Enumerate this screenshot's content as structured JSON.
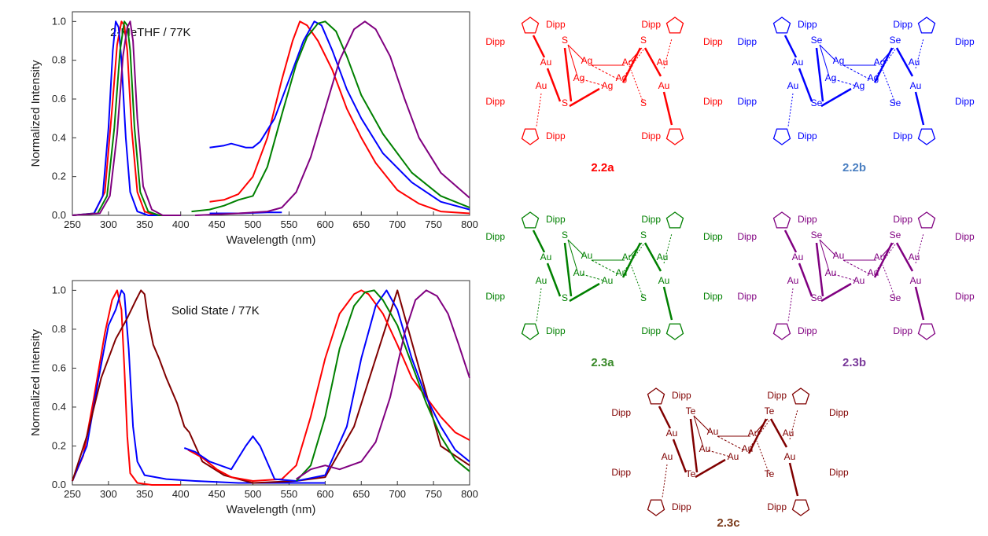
{
  "chart_data": [
    {
      "type": "line",
      "annotation": "2-MeTHF / 77K",
      "xlabel": "Wavelength (nm)",
      "ylabel": "Normalized Intensity",
      "xlim": [
        250,
        800
      ],
      "ylim": [
        0,
        1.05
      ],
      "xticks": [
        250,
        300,
        350,
        400,
        450,
        500,
        550,
        600,
        650,
        700,
        750,
        800
      ],
      "yticks": [
        0.0,
        0.2,
        0.4,
        0.6,
        0.8,
        1.0
      ],
      "legend": "none",
      "series": [
        {
          "color": "#ff0000",
          "kind": "excitation",
          "x": [
            250,
            280,
            295,
            305,
            312,
            318,
            322,
            326,
            332,
            340,
            350,
            365,
            400
          ],
          "y": [
            0.0,
            0.01,
            0.12,
            0.55,
            0.88,
            1.0,
            0.98,
            0.85,
            0.45,
            0.12,
            0.02,
            0.0,
            0.0
          ]
        },
        {
          "color": "#0000ff",
          "kind": "excitation",
          "x": [
            250,
            280,
            292,
            300,
            306,
            310,
            314,
            318,
            324,
            330,
            340,
            355,
            400
          ],
          "y": [
            0.0,
            0.01,
            0.1,
            0.45,
            0.85,
            1.0,
            0.97,
            0.8,
            0.4,
            0.12,
            0.02,
            0.0,
            0.0
          ]
        },
        {
          "color": "#008000",
          "kind": "excitation",
          "x": [
            250,
            285,
            298,
            308,
            316,
            322,
            326,
            330,
            336,
            344,
            355,
            370,
            400
          ],
          "y": [
            0.0,
            0.01,
            0.1,
            0.45,
            0.85,
            1.0,
            0.98,
            0.85,
            0.45,
            0.12,
            0.02,
            0.0,
            0.0
          ]
        },
        {
          "color": "#800080",
          "kind": "excitation",
          "x": [
            250,
            288,
            302,
            312,
            320,
            326,
            330,
            334,
            340,
            348,
            360,
            375,
            400
          ],
          "y": [
            0.0,
            0.01,
            0.1,
            0.42,
            0.82,
            0.97,
            1.0,
            0.9,
            0.5,
            0.15,
            0.03,
            0.0,
            0.0
          ]
        },
        {
          "color": "#ff0000",
          "kind": "emission",
          "x": [
            440,
            460,
            480,
            500,
            520,
            540,
            555,
            565,
            575,
            590,
            610,
            630,
            650,
            670,
            700,
            730,
            760,
            800
          ],
          "y": [
            0.07,
            0.08,
            0.11,
            0.2,
            0.4,
            0.7,
            0.9,
            1.0,
            0.98,
            0.9,
            0.75,
            0.55,
            0.4,
            0.27,
            0.13,
            0.06,
            0.02,
            0.01
          ]
        },
        {
          "color": "#0000ff",
          "kind": "emission",
          "x": [
            440,
            460,
            470,
            490,
            500,
            510,
            530,
            550,
            570,
            585,
            595,
            610,
            630,
            650,
            680,
            720,
            760,
            800
          ],
          "y": [
            0.35,
            0.36,
            0.37,
            0.35,
            0.35,
            0.38,
            0.5,
            0.7,
            0.9,
            1.0,
            0.98,
            0.85,
            0.65,
            0.5,
            0.32,
            0.17,
            0.07,
            0.03
          ]
        },
        {
          "color": "#008000",
          "kind": "emission",
          "x": [
            415,
            440,
            460,
            480,
            500,
            520,
            540,
            560,
            575,
            590,
            600,
            615,
            630,
            650,
            680,
            720,
            760,
            800
          ],
          "y": [
            0.02,
            0.03,
            0.05,
            0.08,
            0.1,
            0.25,
            0.52,
            0.78,
            0.92,
            0.99,
            1.0,
            0.95,
            0.82,
            0.62,
            0.42,
            0.22,
            0.1,
            0.04
          ]
        },
        {
          "color": "#0000ff",
          "kind": "emission-baseline",
          "x": [
            440,
            480,
            520,
            540
          ],
          "y": [
            0.01,
            0.01,
            0.015,
            0.015
          ]
        },
        {
          "color": "#800080",
          "kind": "emission",
          "x": [
            420,
            480,
            520,
            540,
            560,
            580,
            600,
            620,
            640,
            655,
            670,
            690,
            710,
            730,
            760,
            800
          ],
          "y": [
            0.0,
            0.01,
            0.02,
            0.04,
            0.12,
            0.3,
            0.55,
            0.8,
            0.96,
            1.0,
            0.96,
            0.82,
            0.6,
            0.4,
            0.22,
            0.09
          ]
        }
      ]
    },
    {
      "type": "line",
      "annotation": "Solid State / 77K",
      "xlabel": "Wavelength (nm)",
      "ylabel": "Normalized Intensity",
      "xlim": [
        250,
        800
      ],
      "ylim": [
        0,
        1.05
      ],
      "xticks": [
        250,
        300,
        350,
        400,
        450,
        500,
        550,
        600,
        650,
        700,
        750,
        800
      ],
      "yticks": [
        0.0,
        0.2,
        0.4,
        0.6,
        0.8,
        1.0
      ],
      "legend": "none",
      "series": [
        {
          "color": "#ff0000",
          "kind": "excitation",
          "x": [
            250,
            265,
            280,
            295,
            305,
            312,
            318,
            322,
            326,
            330,
            340,
            360,
            400
          ],
          "y": [
            0.02,
            0.15,
            0.45,
            0.78,
            0.95,
            1.0,
            0.9,
            0.6,
            0.25,
            0.06,
            0.01,
            0.0,
            0.0
          ]
        },
        {
          "color": "#0000ff",
          "kind": "excitation",
          "x": [
            250,
            270,
            285,
            300,
            310,
            318,
            322,
            328,
            334,
            340,
            350,
            380,
            420,
            480,
            550,
            600
          ],
          "y": [
            0.02,
            0.2,
            0.52,
            0.82,
            0.9,
            1.0,
            0.98,
            0.7,
            0.3,
            0.12,
            0.05,
            0.03,
            0.02,
            0.01,
            0.01,
            0.01
          ]
        },
        {
          "color": "#800000",
          "kind": "excitation",
          "x": [
            250,
            270,
            290,
            310,
            325,
            338,
            345,
            350,
            355,
            362,
            370,
            380,
            395,
            405,
            412,
            430,
            460,
            500,
            560,
            600,
            640,
            700,
            760,
            800
          ],
          "y": [
            0.02,
            0.25,
            0.55,
            0.75,
            0.85,
            0.95,
            1.0,
            0.98,
            0.85,
            0.72,
            0.65,
            0.55,
            0.42,
            0.3,
            0.27,
            0.12,
            0.05,
            0.01,
            0.02,
            0.04,
            0.3,
            1.0,
            0.2,
            0.1
          ]
        },
        {
          "color": "#ff0000",
          "kind": "emission",
          "x": [
            410,
            430,
            450,
            470,
            500,
            540,
            560,
            580,
            600,
            620,
            640,
            650,
            660,
            680,
            700,
            720,
            740,
            760,
            780,
            800
          ],
          "y": [
            0.18,
            0.14,
            0.08,
            0.04,
            0.02,
            0.03,
            0.1,
            0.35,
            0.65,
            0.88,
            0.98,
            1.0,
            0.98,
            0.88,
            0.72,
            0.55,
            0.45,
            0.35,
            0.27,
            0.23
          ]
        },
        {
          "color": "#0000ff",
          "kind": "emission",
          "x": [
            405,
            420,
            440,
            470,
            490,
            500,
            510,
            530,
            560,
            600,
            630,
            650,
            670,
            685,
            700,
            720,
            740,
            760,
            780,
            800
          ],
          "y": [
            0.19,
            0.17,
            0.12,
            0.08,
            0.2,
            0.25,
            0.2,
            0.03,
            0.02,
            0.05,
            0.3,
            0.65,
            0.92,
            1.0,
            0.9,
            0.65,
            0.45,
            0.3,
            0.18,
            0.12
          ]
        },
        {
          "color": "#008000",
          "kind": "emission",
          "x": [
            560,
            580,
            600,
            620,
            640,
            655,
            668,
            680,
            700,
            720,
            740,
            760,
            780,
            800
          ],
          "y": [
            0.02,
            0.1,
            0.35,
            0.7,
            0.92,
            0.99,
            1.0,
            0.95,
            0.82,
            0.62,
            0.42,
            0.25,
            0.13,
            0.07
          ]
        },
        {
          "color": "#800080",
          "kind": "emission",
          "x": [
            560,
            580,
            600,
            620,
            650,
            670,
            690,
            710,
            725,
            740,
            755,
            770,
            785,
            800
          ],
          "y": [
            0.03,
            0.08,
            0.1,
            0.08,
            0.12,
            0.22,
            0.45,
            0.78,
            0.95,
            1.0,
            0.97,
            0.88,
            0.72,
            0.55
          ]
        }
      ]
    }
  ],
  "molecules": [
    {
      "label": "2.2a",
      "color": "#ff0000",
      "chalcogen": "S",
      "metal": "Ag",
      "substituent": "Dipp",
      "gold": "Au"
    },
    {
      "label": "2.2b",
      "color": "#0000ff",
      "chalcogen": "Se",
      "metal": "Ag",
      "substituent": "Dipp",
      "gold": "Au"
    },
    {
      "label": "2.3a",
      "color": "#008000",
      "chalcogen": "S",
      "metal": "Au",
      "substituent": "Dipp",
      "gold": "Au"
    },
    {
      "label": "2.3b",
      "color": "#800080",
      "chalcogen": "Se",
      "metal": "Au",
      "substituent": "Dipp",
      "gold": "Au"
    },
    {
      "label": "2.3c",
      "color": "#800000",
      "chalcogen": "Te",
      "metal": "Au",
      "substituent": "Dipp",
      "gold": "Au"
    }
  ],
  "label_colors": [
    "#ff0000",
    "#4a7fc1",
    "#3a8a2a",
    "#7a3a9a",
    "#7a3a1a"
  ]
}
